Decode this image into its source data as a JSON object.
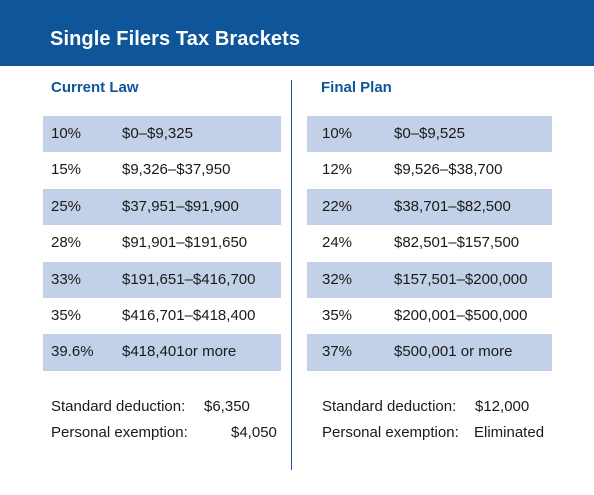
{
  "header": {
    "title": "Single Filers Tax Brackets"
  },
  "current_law": {
    "title": "Current Law",
    "rows": [
      {
        "rate": "10%",
        "range": "$0–$9,325"
      },
      {
        "rate": "15%",
        "range": "$9,326–$37,950"
      },
      {
        "rate": "25%",
        "range": "$37,951–$91,900"
      },
      {
        "rate": "28%",
        "range": "$91,901–$191,650"
      },
      {
        "rate": "33%",
        "range": "$191,651–$416,700"
      },
      {
        "rate": "35%",
        "range": "$416,701–$418,400"
      },
      {
        "rate": "39.6%",
        "range": "$418,401or more"
      }
    ],
    "standard_deduction_label": "Standard deduction:",
    "standard_deduction_value": "$6,350",
    "personal_exemption_label": "Personal exemption:",
    "personal_exemption_value": "$4,050"
  },
  "final_plan": {
    "title": "Final Plan",
    "rows": [
      {
        "rate": "10%",
        "range": "$0–$9,525"
      },
      {
        "rate": "12%",
        "range": "$9,526–$38,700"
      },
      {
        "rate": "22%",
        "range": "$38,701–$82,500"
      },
      {
        "rate": "24%",
        "range": "$82,501–$157,500"
      },
      {
        "rate": "32%",
        "range": "$157,501–$200,000"
      },
      {
        "rate": "35%",
        "range": "$200,001–$500,000"
      },
      {
        "rate": "37%",
        "range": "$500,001 or more"
      }
    ],
    "standard_deduction_label": "Standard deduction:",
    "standard_deduction_value": "$12,000",
    "personal_exemption_label": "Personal exemption:",
    "personal_exemption_value": "Eliminated"
  },
  "colors": {
    "header_bg": "#0e5699",
    "stripe": "#c2d1e7",
    "accent": "#0e5699"
  }
}
